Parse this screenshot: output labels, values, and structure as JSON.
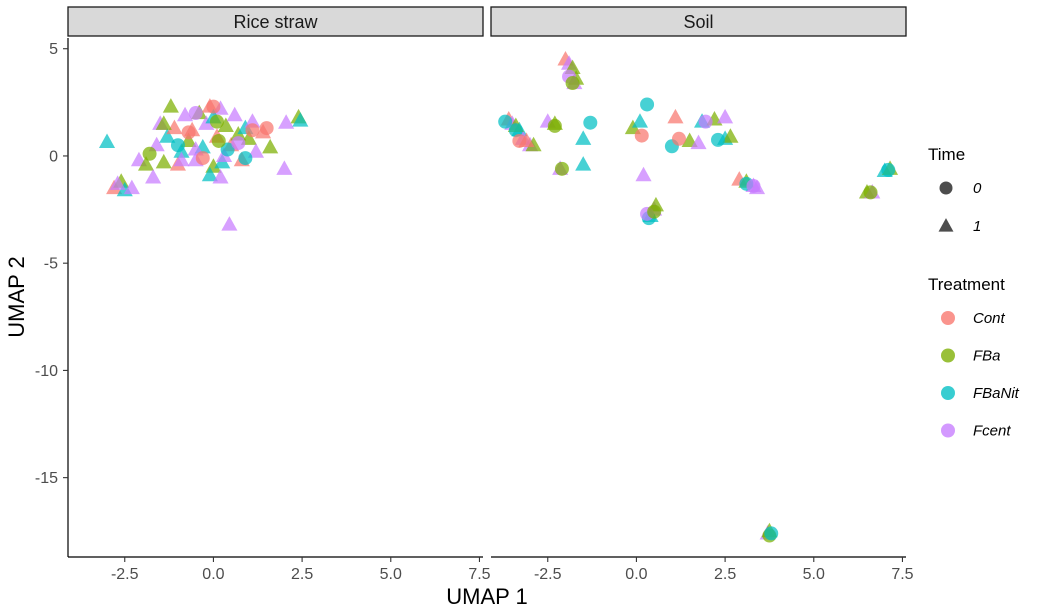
{
  "chart_data": {
    "type": "scatter",
    "xlabel": "UMAP 1",
    "ylabel": "UMAP 2",
    "xlim": [
      -4.1,
      7.6
    ],
    "ylim": [
      -18.7,
      5.5
    ],
    "x_ticks": [
      -2.5,
      0.0,
      2.5,
      5.0,
      7.5
    ],
    "x_tick_labels": [
      "-2.5",
      "0.0",
      "2.5",
      "5.0",
      "7.5"
    ],
    "y_ticks": [
      5,
      0,
      -5,
      -10,
      -15
    ],
    "y_tick_labels": [
      "5",
      "0",
      "-5",
      "-10",
      "-15"
    ],
    "grid": false,
    "legend_position": "right",
    "panels": [
      {
        "label": "Rice straw",
        "points": [
          {
            "x": -3.0,
            "y": 0.65,
            "treatment": "FBaNit",
            "time": "1"
          },
          {
            "x": -2.8,
            "y": -1.5,
            "treatment": "Cont",
            "time": "1"
          },
          {
            "x": -2.6,
            "y": -1.2,
            "treatment": "FBa",
            "time": "1"
          },
          {
            "x": -2.5,
            "y": -1.6,
            "treatment": "FBaNit",
            "time": "1"
          },
          {
            "x": -2.7,
            "y": -1.3,
            "treatment": "Fcent",
            "time": "1"
          },
          {
            "x": -2.3,
            "y": -1.5,
            "treatment": "Fcent",
            "time": "1"
          },
          {
            "x": -2.1,
            "y": -0.2,
            "treatment": "Fcent",
            "time": "1"
          },
          {
            "x": -1.9,
            "y": -0.4,
            "treatment": "FBa",
            "time": "1"
          },
          {
            "x": -1.7,
            "y": -1.0,
            "treatment": "Fcent",
            "time": "1"
          },
          {
            "x": -1.6,
            "y": 0.5,
            "treatment": "Fcent",
            "time": "1"
          },
          {
            "x": -1.5,
            "y": 1.5,
            "treatment": "Fcent",
            "time": "1"
          },
          {
            "x": -1.4,
            "y": -0.3,
            "treatment": "FBa",
            "time": "1"
          },
          {
            "x": -1.3,
            "y": 0.9,
            "treatment": "FBaNit",
            "time": "1"
          },
          {
            "x": -1.2,
            "y": 2.3,
            "treatment": "FBa",
            "time": "1"
          },
          {
            "x": -1.1,
            "y": 1.3,
            "treatment": "Cont",
            "time": "1"
          },
          {
            "x": -1.0,
            "y": -0.4,
            "treatment": "Cont",
            "time": "1"
          },
          {
            "x": -0.9,
            "y": 0.2,
            "treatment": "FBaNit",
            "time": "1"
          },
          {
            "x": -0.8,
            "y": 1.9,
            "treatment": "Fcent",
            "time": "1"
          },
          {
            "x": -0.7,
            "y": 0.7,
            "treatment": "FBa",
            "time": "1"
          },
          {
            "x": -0.6,
            "y": 1.2,
            "treatment": "Cont",
            "time": "1"
          },
          {
            "x": -0.5,
            "y": -0.2,
            "treatment": "Fcent",
            "time": "1"
          },
          {
            "x": -0.4,
            "y": 2.0,
            "treatment": "FBa",
            "time": "1"
          },
          {
            "x": -0.3,
            "y": 0.4,
            "treatment": "FBaNit",
            "time": "1"
          },
          {
            "x": -0.2,
            "y": 1.5,
            "treatment": "Fcent",
            "time": "1"
          },
          {
            "x": -0.1,
            "y": 2.3,
            "treatment": "Cont",
            "time": "1"
          },
          {
            "x": 0.0,
            "y": -0.5,
            "treatment": "FBa",
            "time": "1"
          },
          {
            "x": 0.1,
            "y": 0.9,
            "treatment": "Cont",
            "time": "1"
          },
          {
            "x": 0.2,
            "y": 2.2,
            "treatment": "Fcent",
            "time": "1"
          },
          {
            "x": 0.25,
            "y": -0.3,
            "treatment": "FBaNit",
            "time": "1"
          },
          {
            "x": 0.35,
            "y": 1.4,
            "treatment": "FBa",
            "time": "1"
          },
          {
            "x": 0.45,
            "y": -3.2,
            "treatment": "Fcent",
            "time": "1"
          },
          {
            "x": 0.5,
            "y": 0.5,
            "treatment": "Cont",
            "time": "1"
          },
          {
            "x": 0.6,
            "y": 1.9,
            "treatment": "Fcent",
            "time": "1"
          },
          {
            "x": 0.7,
            "y": 1.0,
            "treatment": "FBa",
            "time": "1"
          },
          {
            "x": 0.8,
            "y": -0.2,
            "treatment": "Cont",
            "time": "1"
          },
          {
            "x": 0.9,
            "y": 1.3,
            "treatment": "FBaNit",
            "time": "1"
          },
          {
            "x": 1.0,
            "y": 0.8,
            "treatment": "FBa",
            "time": "1"
          },
          {
            "x": 1.1,
            "y": 1.6,
            "treatment": "Fcent",
            "time": "1"
          },
          {
            "x": 1.2,
            "y": 0.2,
            "treatment": "Fcent",
            "time": "1"
          },
          {
            "x": 1.4,
            "y": 1.1,
            "treatment": "Cont",
            "time": "1"
          },
          {
            "x": 1.6,
            "y": 0.4,
            "treatment": "FBa",
            "time": "1"
          },
          {
            "x": 2.0,
            "y": -0.6,
            "treatment": "Fcent",
            "time": "1"
          },
          {
            "x": 2.05,
            "y": 1.55,
            "treatment": "Fcent",
            "time": "1"
          },
          {
            "x": 2.4,
            "y": 1.8,
            "treatment": "FBa",
            "time": "1"
          },
          {
            "x": 2.45,
            "y": 1.65,
            "treatment": "FBaNit",
            "time": "1"
          },
          {
            "x": -1.4,
            "y": 1.5,
            "treatment": "FBa",
            "time": "1"
          },
          {
            "x": -0.9,
            "y": -0.2,
            "treatment": "Fcent",
            "time": "1"
          },
          {
            "x": 0.0,
            "y": 1.8,
            "treatment": "FBaNit",
            "time": "1"
          },
          {
            "x": 0.3,
            "y": 0.0,
            "treatment": "Fcent",
            "time": "1"
          },
          {
            "x": -0.5,
            "y": 0.3,
            "treatment": "Fcent",
            "time": "1"
          },
          {
            "x": -0.1,
            "y": -0.9,
            "treatment": "FBaNit",
            "time": "1"
          },
          {
            "x": 0.2,
            "y": -1.0,
            "treatment": "Fcent",
            "time": "1"
          },
          {
            "x": 0.4,
            "y": 0.3,
            "treatment": "FBaNit",
            "time": "0"
          },
          {
            "x": -0.7,
            "y": 1.1,
            "treatment": "Cont",
            "time": "0"
          },
          {
            "x": 0.1,
            "y": 1.6,
            "treatment": "FBa",
            "time": "0"
          },
          {
            "x": -0.3,
            "y": -0.1,
            "treatment": "Cont",
            "time": "0"
          },
          {
            "x": 0.7,
            "y": 0.6,
            "treatment": "Fcent",
            "time": "0"
          },
          {
            "x": -1.0,
            "y": 0.5,
            "treatment": "FBaNit",
            "time": "0"
          },
          {
            "x": 1.1,
            "y": 1.2,
            "treatment": "Cont",
            "time": "0"
          },
          {
            "x": 1.5,
            "y": 1.3,
            "treatment": "Cont",
            "time": "0"
          },
          {
            "x": -0.5,
            "y": 2.0,
            "treatment": "Fcent",
            "time": "0"
          },
          {
            "x": 0.0,
            "y": 2.3,
            "treatment": "Cont",
            "time": "0"
          },
          {
            "x": -1.8,
            "y": 0.1,
            "treatment": "FBa",
            "time": "0"
          },
          {
            "x": 0.9,
            "y": -0.1,
            "treatment": "FBaNit",
            "time": "0"
          },
          {
            "x": 0.15,
            "y": 0.7,
            "treatment": "FBa",
            "time": "0"
          }
        ]
      },
      {
        "label": "Soil",
        "points": [
          {
            "x": -2.0,
            "y": 4.5,
            "treatment": "Cont",
            "time": "1"
          },
          {
            "x": -1.9,
            "y": 4.3,
            "treatment": "Fcent",
            "time": "1"
          },
          {
            "x": -1.8,
            "y": 4.1,
            "treatment": "FBa",
            "time": "1"
          },
          {
            "x": -1.7,
            "y": 3.6,
            "treatment": "FBa",
            "time": "1"
          },
          {
            "x": -1.75,
            "y": 3.4,
            "treatment": "Fcent",
            "time": "1"
          },
          {
            "x": -3.6,
            "y": 1.7,
            "treatment": "Cont",
            "time": "1"
          },
          {
            "x": -3.5,
            "y": 1.5,
            "treatment": "Fcent",
            "time": "1"
          },
          {
            "x": -3.3,
            "y": 1.2,
            "treatment": "FBaNit",
            "time": "1"
          },
          {
            "x": -3.2,
            "y": 0.8,
            "treatment": "Fcent",
            "time": "1"
          },
          {
            "x": -3.0,
            "y": 0.5,
            "treatment": "Fcent",
            "time": "1"
          },
          {
            "x": -2.9,
            "y": 0.5,
            "treatment": "FBa",
            "time": "1"
          },
          {
            "x": -2.5,
            "y": 1.6,
            "treatment": "Fcent",
            "time": "1"
          },
          {
            "x": -2.3,
            "y": 1.5,
            "treatment": "FBa",
            "time": "1"
          },
          {
            "x": -2.15,
            "y": -0.6,
            "treatment": "Fcent",
            "time": "1"
          },
          {
            "x": -1.5,
            "y": 0.8,
            "treatment": "FBaNit",
            "time": "1"
          },
          {
            "x": -1.5,
            "y": -0.4,
            "treatment": "FBaNit",
            "time": "1"
          },
          {
            "x": -0.1,
            "y": 1.3,
            "treatment": "FBa",
            "time": "1"
          },
          {
            "x": 0.1,
            "y": 1.6,
            "treatment": "FBaNit",
            "time": "1"
          },
          {
            "x": 0.2,
            "y": -0.9,
            "treatment": "Fcent",
            "time": "1"
          },
          {
            "x": 1.1,
            "y": 1.8,
            "treatment": "Cont",
            "time": "1"
          },
          {
            "x": 1.5,
            "y": 0.7,
            "treatment": "FBa",
            "time": "1"
          },
          {
            "x": 1.75,
            "y": 0.6,
            "treatment": "Fcent",
            "time": "1"
          },
          {
            "x": 1.85,
            "y": 1.6,
            "treatment": "FBaNit",
            "time": "1"
          },
          {
            "x": 2.2,
            "y": 1.7,
            "treatment": "FBa",
            "time": "1"
          },
          {
            "x": 2.5,
            "y": 1.8,
            "treatment": "Fcent",
            "time": "1"
          },
          {
            "x": 2.5,
            "y": 0.8,
            "treatment": "FBaNit",
            "time": "1"
          },
          {
            "x": 2.65,
            "y": 0.9,
            "treatment": "FBa",
            "time": "1"
          },
          {
            "x": 2.9,
            "y": -1.1,
            "treatment": "Cont",
            "time": "1"
          },
          {
            "x": 3.1,
            "y": -1.2,
            "treatment": "FBa",
            "time": "1"
          },
          {
            "x": 3.3,
            "y": -1.4,
            "treatment": "Fcent",
            "time": "1"
          },
          {
            "x": 3.4,
            "y": -1.5,
            "treatment": "Fcent",
            "time": "1"
          },
          {
            "x": 3.7,
            "y": -17.6,
            "treatment": "Fcent",
            "time": "1"
          },
          {
            "x": 3.75,
            "y": -17.5,
            "treatment": "FBa",
            "time": "1"
          },
          {
            "x": 6.5,
            "y": -1.7,
            "treatment": "FBa",
            "time": "1"
          },
          {
            "x": 6.65,
            "y": -1.7,
            "treatment": "Fcent",
            "time": "1"
          },
          {
            "x": 7.0,
            "y": -0.7,
            "treatment": "FBaNit",
            "time": "1"
          },
          {
            "x": 7.15,
            "y": -0.6,
            "treatment": "FBa",
            "time": "1"
          },
          {
            "x": 0.4,
            "y": -2.8,
            "treatment": "FBaNit",
            "time": "1"
          },
          {
            "x": 0.5,
            "y": -2.5,
            "treatment": "Fcent",
            "time": "1"
          },
          {
            "x": 0.55,
            "y": -2.3,
            "treatment": "FBa",
            "time": "1"
          },
          {
            "x": -3.4,
            "y": 1.4,
            "treatment": "FBa",
            "time": "1"
          },
          {
            "x": -3.1,
            "y": 0.7,
            "treatment": "Cont",
            "time": "1"
          },
          {
            "x": -3.7,
            "y": 1.6,
            "treatment": "FBaNit",
            "time": "0"
          },
          {
            "x": -3.4,
            "y": 1.2,
            "treatment": "FBaNit",
            "time": "0"
          },
          {
            "x": -3.3,
            "y": 0.7,
            "treatment": "Cont",
            "time": "0"
          },
          {
            "x": -2.3,
            "y": 1.4,
            "treatment": "FBa",
            "time": "0"
          },
          {
            "x": -1.3,
            "y": 1.55,
            "treatment": "FBaNit",
            "time": "0"
          },
          {
            "x": -1.9,
            "y": 3.7,
            "treatment": "Fcent",
            "time": "0"
          },
          {
            "x": -1.8,
            "y": 3.4,
            "treatment": "FBa",
            "time": "0"
          },
          {
            "x": 0.15,
            "y": 0.95,
            "treatment": "Cont",
            "time": "0"
          },
          {
            "x": 0.3,
            "y": 2.4,
            "treatment": "FBaNit",
            "time": "0"
          },
          {
            "x": 1.0,
            "y": 0.45,
            "treatment": "FBaNit",
            "time": "0"
          },
          {
            "x": 1.2,
            "y": 0.8,
            "treatment": "Cont",
            "time": "0"
          },
          {
            "x": 1.95,
            "y": 1.6,
            "treatment": "Fcent",
            "time": "0"
          },
          {
            "x": 2.3,
            "y": 0.75,
            "treatment": "FBaNit",
            "time": "0"
          },
          {
            "x": 0.35,
            "y": -2.9,
            "treatment": "FBaNit",
            "time": "0"
          },
          {
            "x": 0.3,
            "y": -2.7,
            "treatment": "Fcent",
            "time": "0"
          },
          {
            "x": 0.5,
            "y": -2.6,
            "treatment": "FBa",
            "time": "0"
          },
          {
            "x": -2.1,
            "y": -0.6,
            "treatment": "FBa",
            "time": "0"
          },
          {
            "x": 3.1,
            "y": -1.3,
            "treatment": "FBaNit",
            "time": "0"
          },
          {
            "x": 3.3,
            "y": -1.4,
            "treatment": "Fcent",
            "time": "0"
          },
          {
            "x": 3.75,
            "y": -17.7,
            "treatment": "FBa",
            "time": "0"
          },
          {
            "x": 3.8,
            "y": -17.6,
            "treatment": "FBaNit",
            "time": "0"
          },
          {
            "x": 6.6,
            "y": -1.7,
            "treatment": "FBa",
            "time": "0"
          },
          {
            "x": 7.1,
            "y": -0.65,
            "treatment": "FBaNit",
            "time": "0"
          }
        ]
      }
    ],
    "legends": {
      "time": {
        "title": "Time",
        "items": [
          "0",
          "1"
        ]
      },
      "treatment": {
        "title": "Treatment",
        "items": [
          "Cont",
          "FBa",
          "FBaNit",
          "Fcent"
        ]
      }
    },
    "colors": {
      "Cont": "#F8766D",
      "FBa": "#7CAE00",
      "FBaNit": "#00BFC4",
      "Fcent": "#C77CFF",
      "strip_fill": "#D9D9D9",
      "legend_shape": "#4D4D4D"
    }
  }
}
